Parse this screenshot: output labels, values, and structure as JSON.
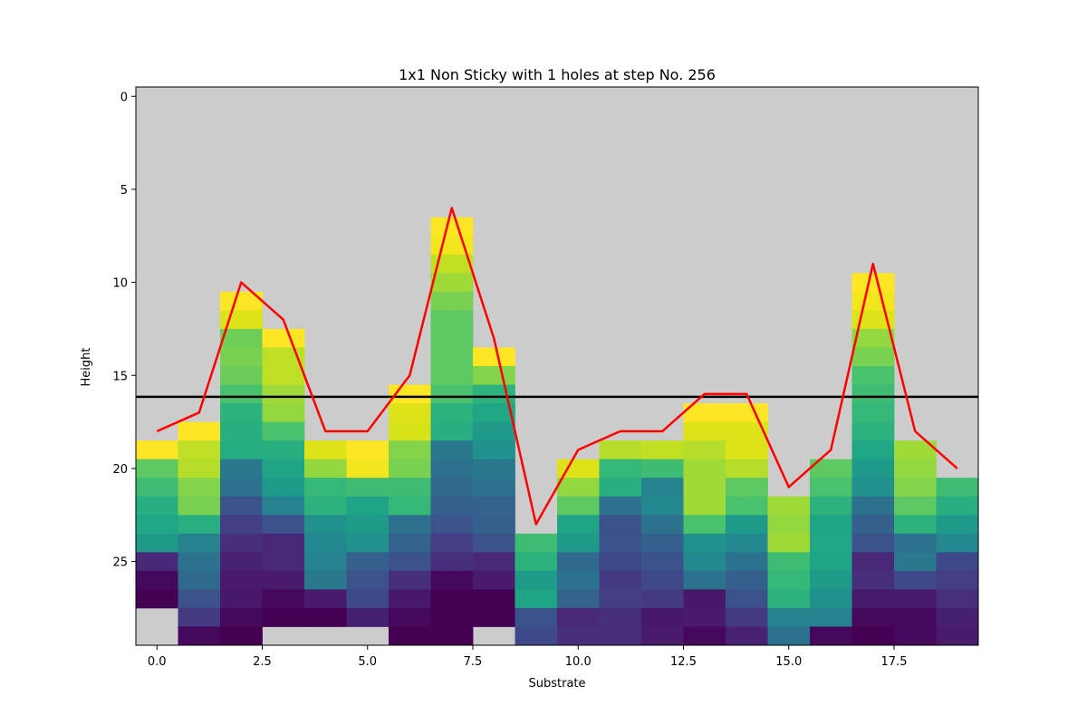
{
  "chart_data": {
    "type": "heatmap",
    "title": "1x1 Non Sticky with 1 holes at step No. 256",
    "xlabel": "Substrate",
    "ylabel": "Height",
    "xlim": [
      -0.5,
      19.5
    ],
    "ylim": [
      29.5,
      -0.5
    ],
    "y_inverted": true,
    "grid": false,
    "xticks": [
      "0.0",
      "2.5",
      "5.0",
      "7.5",
      "10.0",
      "12.5",
      "15.0",
      "17.5"
    ],
    "yticks": [
      "0",
      "5",
      "10",
      "15",
      "20",
      "25"
    ],
    "background_color": "#cccccc",
    "colormap": "viridis",
    "columns": [
      {
        "x": 0,
        "top": 19,
        "colors": [
          "#fde725",
          "#5ec962",
          "#3fbc73",
          "#28ae80",
          "#21a685",
          "#1f9a8a",
          "#482878",
          "#46085c",
          "#440154"
        ]
      },
      {
        "x": 1,
        "top": 18,
        "colors": [
          "#fde725",
          "#bddf26",
          "#b5de2b",
          "#84d44b",
          "#7ad151",
          "#29af7f",
          "#26828e",
          "#2c728e",
          "#31688e",
          "#3b528b",
          "#443983",
          "#46085c"
        ]
      },
      {
        "x": 2,
        "top": 11,
        "colors": [
          "#fde725",
          "#dde318",
          "#6ece58",
          "#7ad151",
          "#6ccd5a",
          "#4ac16d",
          "#2db27d",
          "#28ae80",
          "#26ad81",
          "#2a788e",
          "#2c728e",
          "#3b528b",
          "#433e85",
          "#472f7d",
          "#482173",
          "#481a6c",
          "#48186a",
          "#46085c",
          "#440154"
        ]
      },
      {
        "x": 3,
        "top": 13,
        "colors": [
          "#fde725",
          "#bddf26",
          "#bddf26",
          "#a0da39",
          "#93d741",
          "#4ac16d",
          "#29af7f",
          "#20a486",
          "#1f9a8a",
          "#26828e",
          "#3b528b",
          "#482878",
          "#482878",
          "#481b6d",
          "#46085c",
          "#440154"
        ]
      },
      {
        "x": 4,
        "top": 19,
        "colors": [
          "#dde318",
          "#93d741",
          "#35b779",
          "#2db27d",
          "#21918c",
          "#23898e",
          "#26828e",
          "#2a788e",
          "#481b6d",
          "#440154"
        ]
      },
      {
        "x": 5,
        "top": 19,
        "colors": [
          "#fde725",
          "#f4e61e",
          "#3fbc73",
          "#20a486",
          "#1f9a8a",
          "#21918c",
          "#355f8d",
          "#3b528b",
          "#3e4989",
          "#482071"
        ]
      },
      {
        "x": 6,
        "top": 16,
        "colors": [
          "#fde725",
          "#dde318",
          "#d8e219",
          "#84d44b",
          "#7ad151",
          "#3fbc73",
          "#35b779",
          "#2c728e",
          "#33638d",
          "#3b528b",
          "#472f7d",
          "#48186a",
          "#46085c",
          "#440154"
        ]
      },
      {
        "x": 7,
        "top": 7,
        "colors": [
          "#fde725",
          "#f4e61e",
          "#c2df23",
          "#a0da39",
          "#7ad151",
          "#5ec962",
          "#5ec962",
          "#5ec962",
          "#5ec962",
          "#4ac16d",
          "#2db27d",
          "#28ae80",
          "#2a788e",
          "#2c728e",
          "#31688e",
          "#355f8d",
          "#3b528b",
          "#433e85",
          "#472f7d",
          "#46085c",
          "#440154",
          "#440154",
          "#440154"
        ]
      },
      {
        "x": 8,
        "top": 14,
        "colors": [
          "#fde725",
          "#84d44b",
          "#2db27d",
          "#21a685",
          "#1f9a8a",
          "#21918c",
          "#2a788e",
          "#2c728e",
          "#33638d",
          "#355f8d",
          "#3b528b",
          "#482878",
          "#481b6d",
          "#440154",
          "#440154"
        ]
      },
      {
        "x": 9,
        "top": 24,
        "colors": [
          "#3fbc73",
          "#2db27d",
          "#1f9a8a",
          "#20a486",
          "#3b528b",
          "#3e4989"
        ]
      },
      {
        "x": 10,
        "top": 20,
        "colors": [
          "#dde318",
          "#93d741",
          "#5ec962",
          "#20a486",
          "#1f9a8a",
          "#31688e",
          "#2c728e",
          "#33638d",
          "#482878",
          "#472f7d"
        ]
      },
      {
        "x": 11,
        "top": 19,
        "colors": [
          "#b5de2b",
          "#35b779",
          "#28ae80",
          "#2c728e",
          "#3b528b",
          "#3b528b",
          "#3e4989",
          "#443983",
          "#433e85",
          "#472f7d",
          "#472f7d"
        ]
      },
      {
        "x": 12,
        "top": 19,
        "colors": [
          "#c2df23",
          "#3fbc73",
          "#26828e",
          "#23898e",
          "#2c728e",
          "#355f8d",
          "#3b528b",
          "#3e4989",
          "#443983",
          "#48186a",
          "#481b6d"
        ]
      },
      {
        "x": 13,
        "top": 17,
        "colors": [
          "#fde725",
          "#dde318",
          "#b5de2b",
          "#a0da39",
          "#a0da39",
          "#a0da39",
          "#4ac16d",
          "#21918c",
          "#23898e",
          "#2c728e",
          "#48186a",
          "#481b6d",
          "#46085c"
        ]
      },
      {
        "x": 14,
        "top": 17,
        "colors": [
          "#fde725",
          "#dde318",
          "#dde318",
          "#b5de2b",
          "#5ec962",
          "#4ac16d",
          "#1f9a8a",
          "#23898e",
          "#2c728e",
          "#355f8d",
          "#3b528b",
          "#443983",
          "#482173"
        ]
      },
      {
        "x": 15,
        "top": 22,
        "colors": [
          "#a0da39",
          "#93d741",
          "#a0da39",
          "#3fbc73",
          "#35b779",
          "#2db27d",
          "#26828e",
          "#2c728e"
        ]
      },
      {
        "x": 16,
        "top": 20,
        "colors": [
          "#5ec962",
          "#4ac16d",
          "#2db27d",
          "#20a486",
          "#21a685",
          "#20a486",
          "#1f9a8a",
          "#21918c",
          "#26828e",
          "#46085c"
        ]
      },
      {
        "x": 17,
        "top": 10,
        "colors": [
          "#fde725",
          "#f4e61e",
          "#dde318",
          "#93d741",
          "#7ad151",
          "#4ac16d",
          "#3fbc73",
          "#35b779",
          "#2db27d",
          "#21a685",
          "#1f9a8a",
          "#21918c",
          "#2c728e",
          "#355f8d",
          "#3b528b",
          "#482878",
          "#472f7d",
          "#481a6c",
          "#46085c",
          "#440154"
        ]
      },
      {
        "x": 18,
        "top": 19,
        "colors": [
          "#a0da39",
          "#93d741",
          "#84d44b",
          "#5ec962",
          "#2db27d",
          "#2c728e",
          "#2a788e",
          "#3e4989",
          "#481b6d",
          "#46085c",
          "#46085c"
        ]
      },
      {
        "x": 19,
        "top": 21,
        "colors": [
          "#3fbc73",
          "#28ae80",
          "#1f9a8a",
          "#23898e",
          "#3e4989",
          "#433e85",
          "#472f7d",
          "#482071",
          "#481b6d"
        ]
      }
    ],
    "series": [
      {
        "type": "line",
        "color": "#ff0000",
        "x": [
          0,
          1,
          2,
          3,
          4,
          5,
          6,
          7,
          8,
          9,
          10,
          11,
          12,
          13,
          14,
          15,
          16,
          17,
          18,
          19
        ],
        "y": [
          18,
          17,
          10,
          12,
          18,
          18,
          15,
          6,
          13,
          23,
          19,
          18,
          18,
          16,
          16,
          21,
          19,
          9,
          18,
          20
        ]
      }
    ],
    "hline": {
      "y": 16.15,
      "color": "#000000"
    }
  }
}
